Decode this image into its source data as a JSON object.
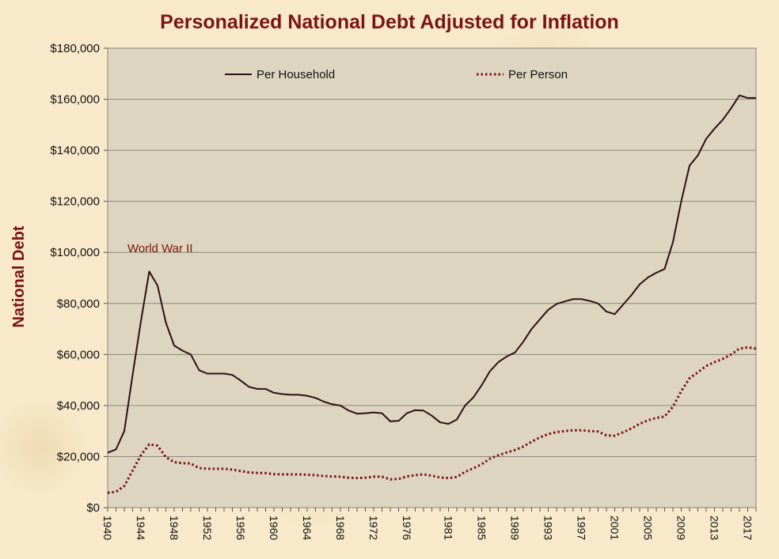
{
  "chart_data": {
    "type": "line",
    "title": "Personalized National Debt Adjusted for Inflation",
    "xlabel": "",
    "ylabel": "National Debt",
    "ylim": [
      0,
      180000
    ],
    "yticks": [
      0,
      20000,
      40000,
      60000,
      80000,
      100000,
      120000,
      140000,
      160000,
      180000
    ],
    "ytick_labels": [
      "$0",
      "$20,000",
      "$40,000",
      "$60,000",
      "$80,000",
      "$100,000",
      "$120,000",
      "$140,000",
      "$160,000",
      "$180,000"
    ],
    "xlim": [
      1940,
      2018
    ],
    "xtick_labels": [
      "1940",
      "1944",
      "1948",
      "1952",
      "1956",
      "1960",
      "1964",
      "1968",
      "1972",
      "1976",
      "1981",
      "1985",
      "1989",
      "1993",
      "1997",
      "2001",
      "2005",
      "2009",
      "2013",
      "2017"
    ],
    "grid": "horizontal",
    "legend_position": "top",
    "annotations": [
      {
        "text": "World War II",
        "x": 1946,
        "y": 92000
      }
    ],
    "x": [
      1940,
      1941,
      1942,
      1943,
      1944,
      1945,
      1946,
      1947,
      1948,
      1949,
      1950,
      1951,
      1952,
      1953,
      1954,
      1955,
      1956,
      1957,
      1958,
      1959,
      1960,
      1961,
      1962,
      1963,
      1964,
      1965,
      1966,
      1967,
      1968,
      1969,
      1970,
      1971,
      1972,
      1973,
      1974,
      1975,
      1976,
      1977,
      1978,
      1979,
      1980,
      1981,
      1982,
      1983,
      1984,
      1985,
      1986,
      1987,
      1988,
      1989,
      1990,
      1991,
      1992,
      1993,
      1994,
      1995,
      1996,
      1997,
      1998,
      1999,
      2000,
      2001,
      2002,
      2003,
      2004,
      2005,
      2006,
      2007,
      2008,
      2009,
      2010,
      2011,
      2012,
      2013,
      2014,
      2015,
      2016,
      2017,
      2018
    ],
    "series": [
      {
        "name": "Per Household",
        "color": "#2b1111",
        "style": "solid",
        "values": [
          21500,
          22800,
          30000,
          52000,
          73000,
          92500,
          87000,
          72500,
          63500,
          61500,
          60000,
          53800,
          52500,
          52500,
          52500,
          52000,
          49800,
          47300,
          46500,
          46500,
          45000,
          44500,
          44200,
          44200,
          43800,
          43000,
          41500,
          40500,
          40000,
          38000,
          36800,
          37000,
          37300,
          37000,
          33800,
          34000,
          37000,
          38200,
          38000,
          36000,
          33400,
          32800,
          34500,
          40000,
          43200,
          48000,
          53500,
          57000,
          59200,
          60800,
          65000,
          70000,
          73800,
          77500,
          79800,
          80800,
          81700,
          81700,
          81000,
          80000,
          76800,
          75800,
          79500,
          83200,
          87500,
          90200,
          92000,
          93500,
          104000,
          120000,
          134000,
          138000,
          144500,
          148500,
          152000,
          156500,
          161500,
          160500,
          160500
        ]
      },
      {
        "name": "Per Person",
        "color": "#7a1414",
        "style": "dotted",
        "values": [
          5800,
          6200,
          8500,
          14500,
          20500,
          24800,
          24300,
          19800,
          17800,
          17400,
          17300,
          15500,
          15200,
          15200,
          15200,
          14900,
          14300,
          13800,
          13600,
          13500,
          13100,
          13000,
          13000,
          13000,
          12900,
          12700,
          12400,
          12200,
          12100,
          11700,
          11600,
          11700,
          12100,
          12100,
          11100,
          11200,
          12200,
          12700,
          13000,
          12500,
          11800,
          11600,
          12000,
          14000,
          15400,
          17000,
          19200,
          20500,
          21600,
          22600,
          23900,
          25800,
          27500,
          28800,
          29600,
          30000,
          30300,
          30300,
          30000,
          29800,
          28300,
          28200,
          29500,
          31000,
          32800,
          34200,
          35200,
          35700,
          39500,
          45600,
          50700,
          53000,
          55500,
          57000,
          58300,
          60000,
          62300,
          62800,
          62300
        ]
      }
    ]
  }
}
